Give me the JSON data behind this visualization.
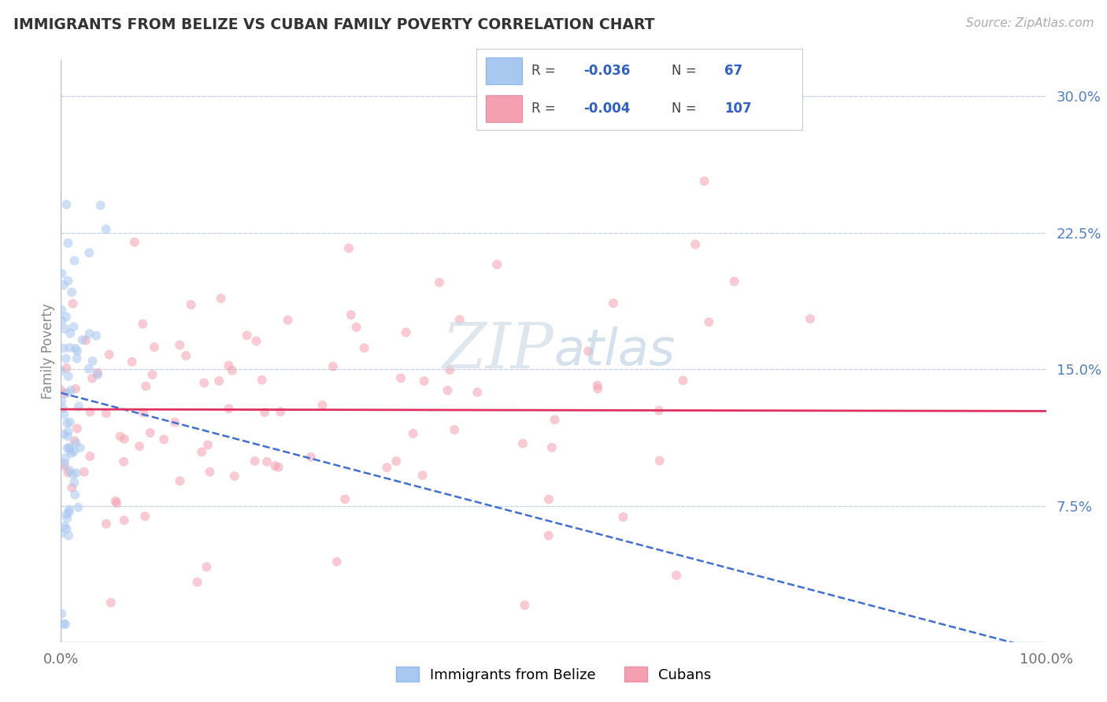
{
  "title": "IMMIGRANTS FROM BELIZE VS CUBAN FAMILY POVERTY CORRELATION CHART",
  "source": "Source: ZipAtlas.com",
  "ylabel": "Family Poverty",
  "yticks": [
    0.0,
    0.075,
    0.15,
    0.225,
    0.3
  ],
  "ytick_labels": [
    "",
    "7.5%",
    "15.0%",
    "22.5%",
    "30.0%"
  ],
  "xlim": [
    0.0,
    1.0
  ],
  "ylim": [
    0.0,
    0.32
  ],
  "legend_r_belize": "-0.036",
  "legend_n_belize": "67",
  "legend_r_cuban": "-0.004",
  "legend_n_cuban": "107",
  "belize_color": "#a8c8f0",
  "cuban_color": "#f4a0b0",
  "belize_line_color": "#4070d0",
  "cuban_line_color": "#e03060",
  "background_color": "#ffffff",
  "grid_color": "#c8d4e8",
  "title_color": "#333333",
  "legend_value_color": "#3060c0",
  "watermark_color": "#d0dce8",
  "marker_size": 75,
  "marker_alpha": 0.55,
  "belize_n": 67,
  "cuban_n": 107
}
